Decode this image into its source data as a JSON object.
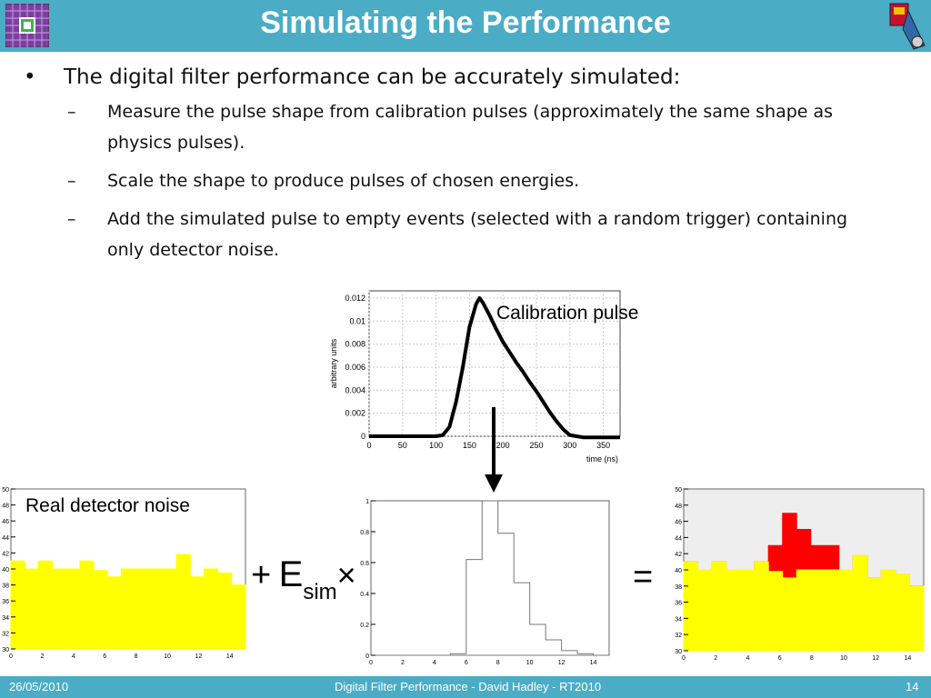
{
  "title": "Simulating the Performance",
  "bullets": {
    "main": "The digital filter performance can be accurately simulated:",
    "sub": [
      "Measure the pulse shape from calibration pulses (approximately the same shape as physics pulses).",
      "Scale the shape to produce pulses of chosen energies.",
      "Add the simulated pulse to empty events (selected with a random trigger) containing only detector noise."
    ]
  },
  "labels": {
    "calibration_pulse": "Calibration pulse",
    "real_noise": "Real detector noise",
    "plus": "+",
    "e": "E",
    "sim": "sim",
    "times": "×",
    "equals": "="
  },
  "colors": {
    "header": "#4bacc6",
    "noise": "#ffff00",
    "signal": "#ff0000"
  },
  "footer": {
    "date": "26/05/2010",
    "center": "Digital Filter Performance  - David Hadley - RT2010",
    "page": "14"
  },
  "chart_data": [
    {
      "type": "line",
      "name": "calibration_pulse",
      "xlabel": "time (ns)",
      "ylabel": "arbitrary units",
      "xlim": [
        0,
        375
      ],
      "ylim": [
        0,
        0.012
      ],
      "xticks": [
        "0",
        "50",
        "100",
        "150",
        "200",
        "250",
        "300",
        "350"
      ],
      "yticks": [
        "0",
        "0.002",
        "0.004",
        "0.006",
        "0.008",
        "0.01",
        "0.012"
      ],
      "x": [
        0,
        20,
        40,
        60,
        80,
        100,
        110,
        120,
        130,
        140,
        150,
        160,
        165,
        170,
        180,
        190,
        200,
        210,
        220,
        230,
        240,
        250,
        260,
        270,
        280,
        290,
        300,
        310,
        320,
        330,
        340,
        350,
        360,
        375
      ],
      "y": [
        0.0,
        0.0,
        0.0,
        0.0,
        0.0,
        0.0,
        0.0001,
        0.0008,
        0.003,
        0.006,
        0.0095,
        0.0115,
        0.012,
        0.0116,
        0.0105,
        0.0093,
        0.0082,
        0.0073,
        0.0064,
        0.0056,
        0.0047,
        0.0039,
        0.003,
        0.0021,
        0.0013,
        0.0006,
        0.0001,
        0.0,
        -0.0001,
        -0.0001,
        -0.0001,
        -0.0001,
        -0.0001,
        -0.0001
      ]
    },
    {
      "type": "bar",
      "name": "noise",
      "xlim": [
        0,
        15
      ],
      "ylim": [
        30,
        50
      ],
      "xticks": [
        "0",
        "2",
        "4",
        "6",
        "8",
        "10",
        "12",
        "14"
      ],
      "yticks": [
        "30",
        "32",
        "34",
        "36",
        "38",
        "40",
        "42",
        "44",
        "46",
        "48",
        "50"
      ],
      "values": [
        41,
        40,
        41,
        40,
        40,
        41,
        39.8,
        39,
        40,
        40,
        40,
        40,
        41.8,
        39,
        40,
        39.5,
        38
      ]
    },
    {
      "type": "bar",
      "name": "shape",
      "xlim": [
        0,
        15
      ],
      "ylim": [
        0,
        1
      ],
      "xticks": [
        "0",
        "2",
        "4",
        "6",
        "8",
        "10",
        "12",
        "14"
      ],
      "yticks": [
        "0",
        "0.2",
        "0.4",
        "0.6",
        "0.8",
        "1"
      ],
      "values": [
        0,
        0,
        0,
        0,
        0,
        0.01,
        0.62,
        1.0,
        0.79,
        0.47,
        0.2,
        0.1,
        0.03,
        0.01,
        0.0
      ]
    },
    {
      "type": "bar",
      "name": "sum",
      "xlim": [
        0,
        15
      ],
      "ylim": [
        30,
        50
      ],
      "xticks": [
        "0",
        "2",
        "4",
        "6",
        "8",
        "10",
        "12",
        "14"
      ],
      "yticks": [
        "30",
        "32",
        "34",
        "36",
        "38",
        "40",
        "42",
        "44",
        "46",
        "48",
        "50"
      ],
      "series": [
        {
          "values": [
            41,
            40,
            41,
            40,
            40,
            41,
            39.8,
            39,
            40,
            40,
            40,
            40,
            41.8,
            39,
            40,
            39.5,
            38
          ]
        },
        {
          "values": [
            41,
            40,
            41,
            40,
            40,
            41,
            43,
            47,
            45,
            43,
            43,
            40,
            41.8,
            39,
            40,
            39.5,
            38
          ]
        }
      ]
    }
  ]
}
